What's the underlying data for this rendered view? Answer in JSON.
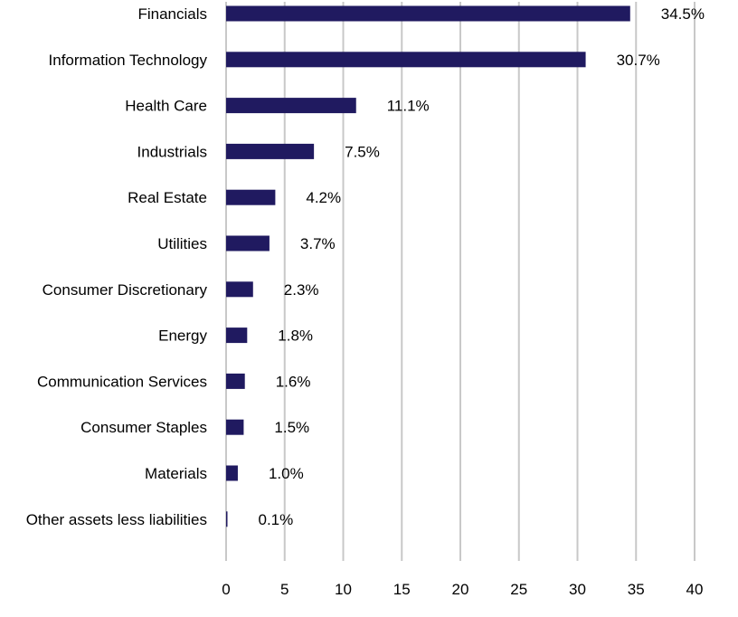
{
  "chart_data": {
    "type": "bar",
    "orientation": "horizontal",
    "categories": [
      "Financials",
      "Information Technology",
      "Health Care",
      "Industrials",
      "Real Estate",
      "Utilities",
      "Consumer Discretionary",
      "Energy",
      "Communication Services",
      "Consumer Staples",
      "Materials",
      "Other assets less liabilities"
    ],
    "values": [
      34.5,
      30.7,
      11.1,
      7.5,
      4.2,
      3.7,
      2.3,
      1.8,
      1.6,
      1.5,
      1.0,
      0.1
    ],
    "data_labels": [
      "34.5%",
      "30.7%",
      "11.1%",
      "7.5%",
      "4.2%",
      "3.7%",
      "2.3%",
      "1.8%",
      "1.6%",
      "1.5%",
      "1.0%",
      "0.1%"
    ],
    "title": "",
    "xlabel": "",
    "ylabel": "",
    "xlim": [
      0,
      40
    ],
    "xticks": [
      "0",
      "5",
      "10",
      "15",
      "20",
      "25",
      "30",
      "35",
      "40"
    ],
    "grid": "vertical",
    "legend": "none",
    "bar_color": "#201a60",
    "grid_color": "#c8c8c8"
  }
}
